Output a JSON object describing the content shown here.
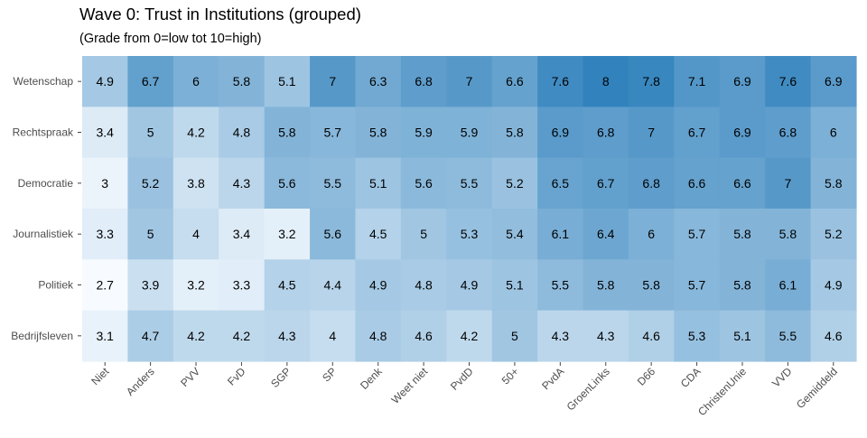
{
  "chart_data": {
    "type": "heatmap",
    "title": "Wave 0: Trust in Institutions (grouped)",
    "subtitle": "(Grade from 0=low tot 10=high)",
    "xlabel": "",
    "ylabel": "",
    "x_categories": [
      "Niet",
      "Anders",
      "PVV",
      "FvD",
      "SGP",
      "SP",
      "Denk",
      "Weet niet",
      "PvdD",
      "50+",
      "PvdA",
      "GroenLinks",
      "D66",
      "CDA",
      "ChristenUnie",
      "VVD",
      "Gemiddeld"
    ],
    "y_categories": [
      "Wetenschap",
      "Rechtspraak",
      "Democratie",
      "Journalistiek",
      "Politiek",
      "Bedrijfsleven"
    ],
    "values": [
      [
        4.9,
        6.7,
        6,
        5.8,
        5.1,
        7,
        6.3,
        6.8,
        7,
        6.6,
        7.6,
        8,
        7.8,
        7.1,
        6.9,
        7.6,
        6.9
      ],
      [
        3.4,
        5,
        4.2,
        4.8,
        5.8,
        5.7,
        5.8,
        5.9,
        5.9,
        5.8,
        6.9,
        6.8,
        7,
        6.7,
        6.9,
        6.8,
        6
      ],
      [
        3,
        5.2,
        3.8,
        4.3,
        5.6,
        5.5,
        5.1,
        5.6,
        5.5,
        5.2,
        6.5,
        6.7,
        6.8,
        6.6,
        6.6,
        7,
        5.8
      ],
      [
        3.3,
        5,
        4,
        3.4,
        3.2,
        5.6,
        4.5,
        5,
        5.3,
        5.4,
        6.1,
        6.4,
        6,
        5.7,
        5.8,
        5.8,
        5.2
      ],
      [
        2.7,
        3.9,
        3.2,
        3.3,
        4.5,
        4.4,
        4.9,
        4.8,
        4.9,
        5.1,
        5.5,
        5.8,
        5.8,
        5.7,
        5.8,
        6.1,
        4.9
      ],
      [
        3.1,
        4.7,
        4.2,
        4.2,
        4.3,
        4,
        4.8,
        4.6,
        4.2,
        5,
        4.3,
        4.3,
        4.6,
        5.3,
        5.1,
        5.5,
        4.6
      ]
    ],
    "color_scale": {
      "low_color": "#f7fbff",
      "high_color": "#3182bd",
      "domain": [
        2.7,
        8
      ]
    },
    "legend": "none",
    "grid": false
  }
}
